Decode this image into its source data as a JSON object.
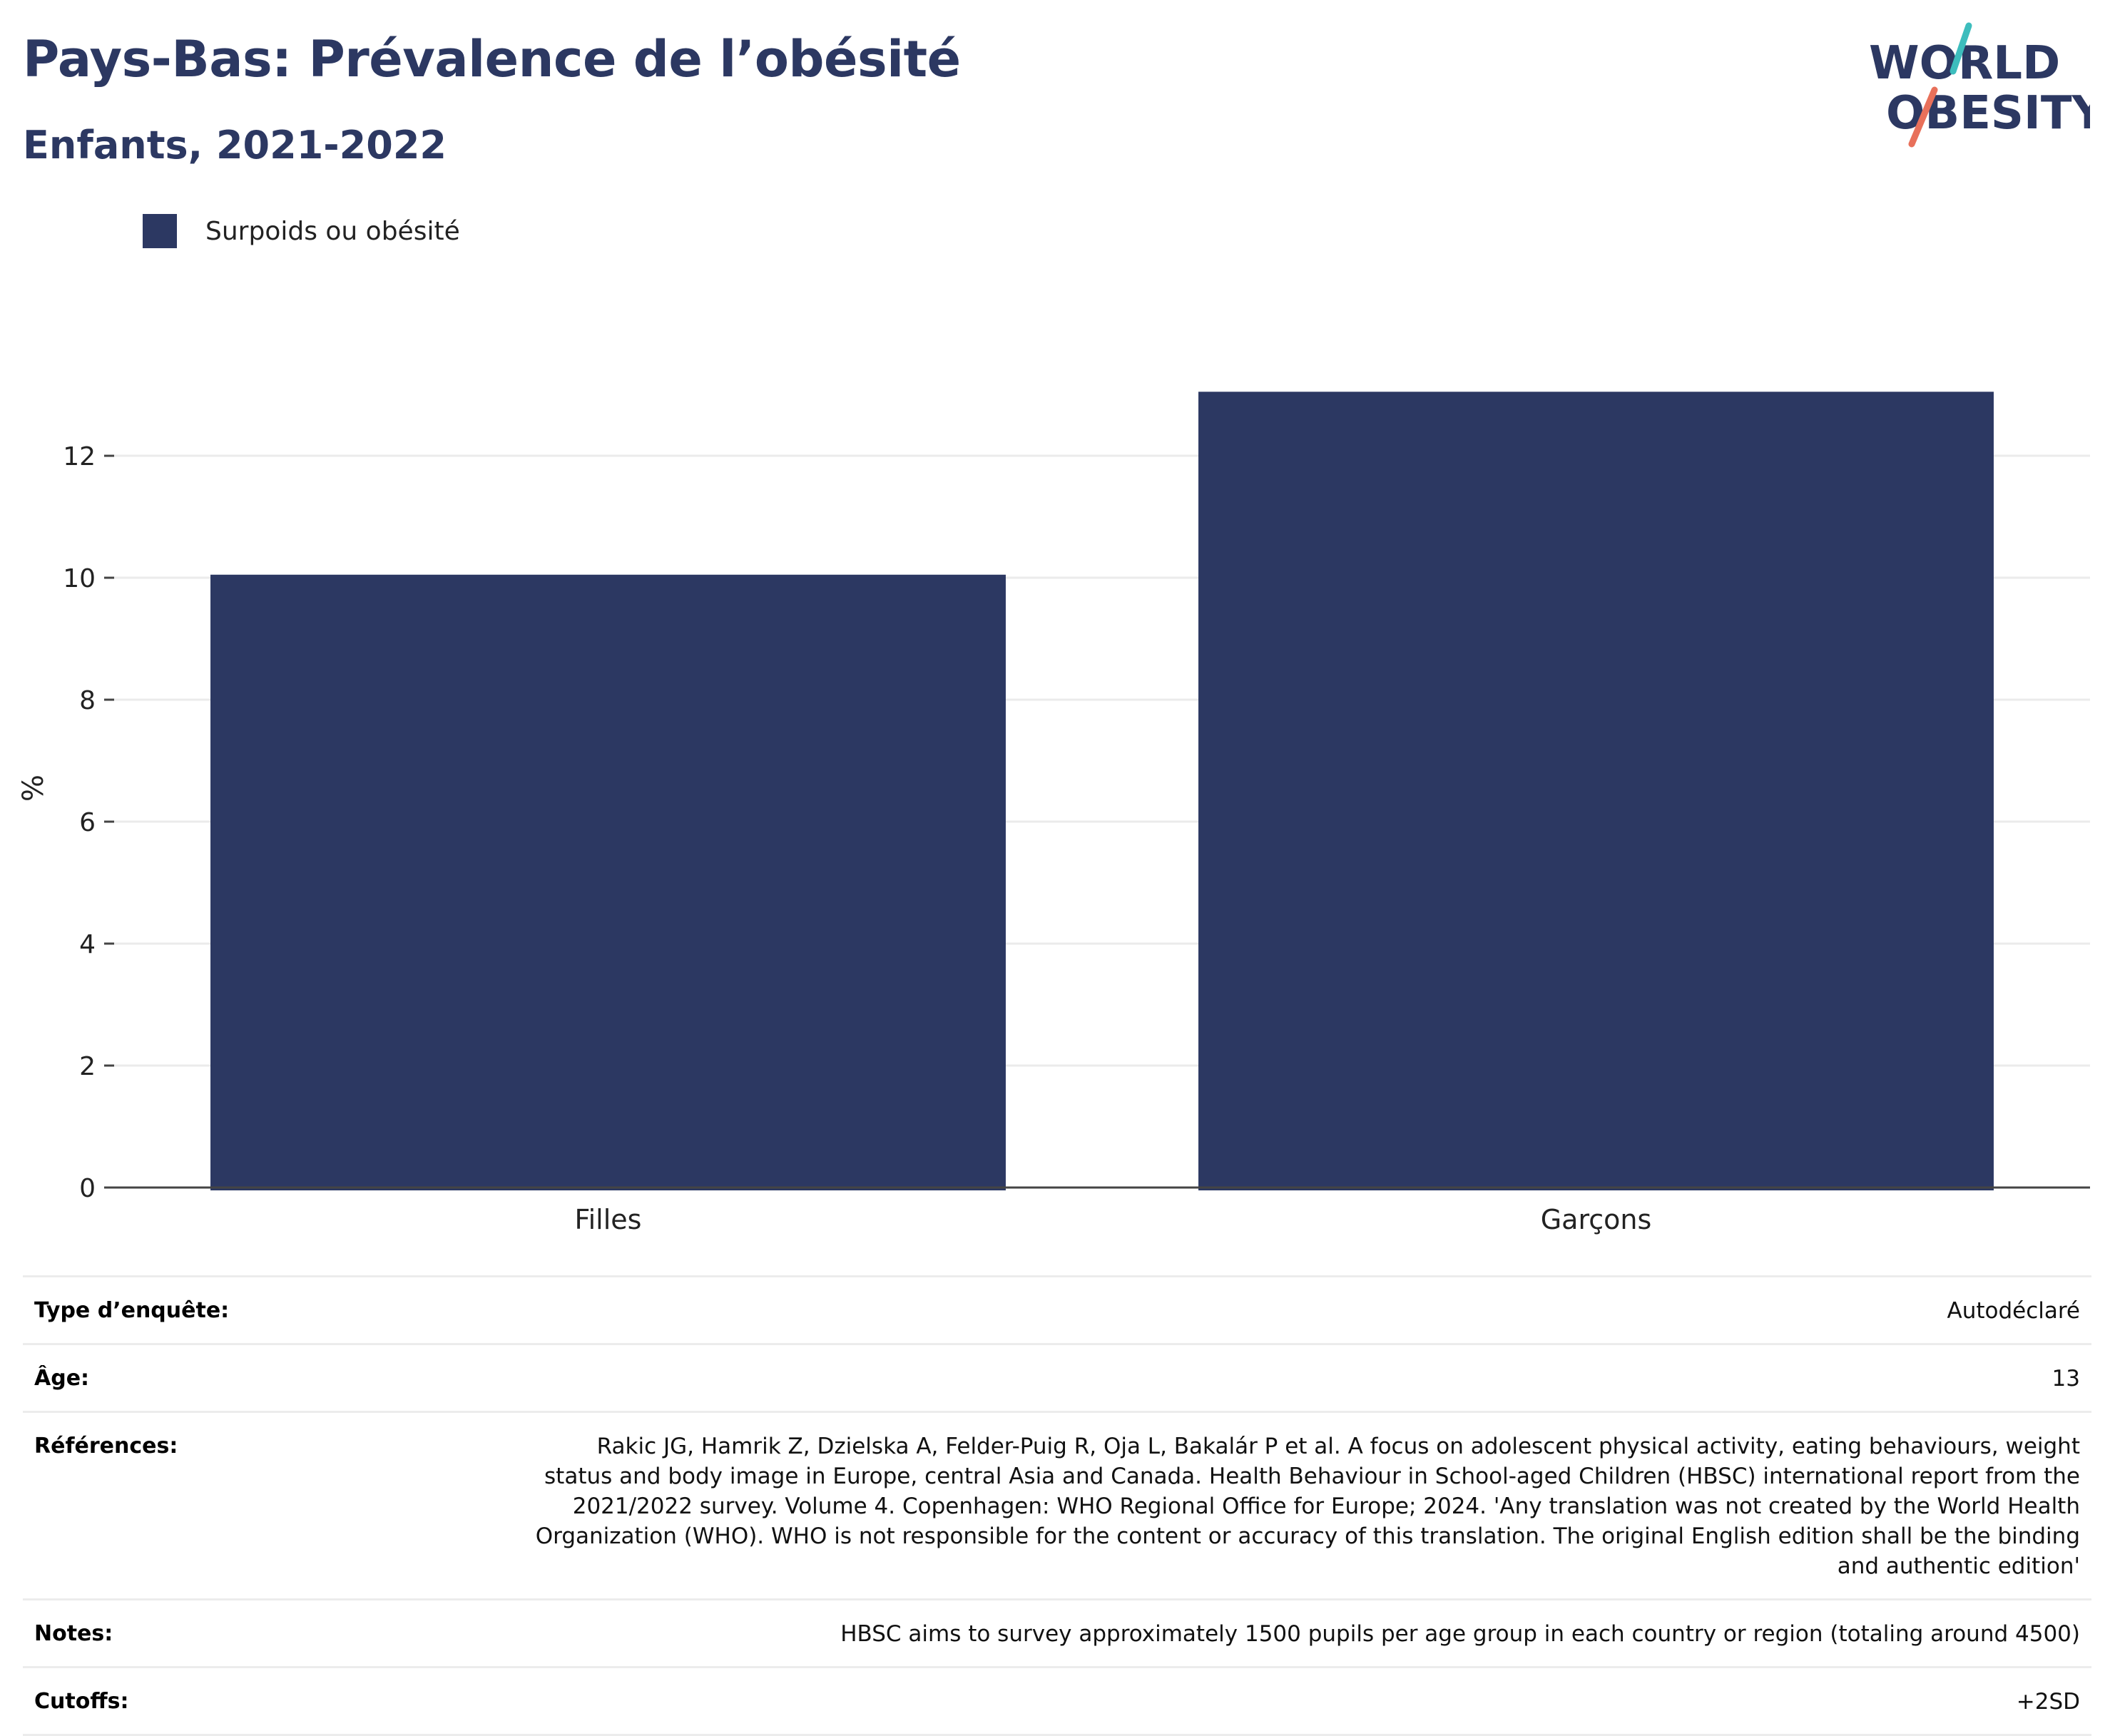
{
  "header": {
    "title": "Pays-Bas: Prévalence de l’obésité",
    "subtitle": "Enfants, 2021-2022"
  },
  "logo": {
    "line1": "WORLD",
    "line2": "OBESITY",
    "colors": {
      "navy": "#2c3862",
      "teal": "#3dbdbd",
      "coral": "#e8705a"
    }
  },
  "legend": {
    "items": [
      {
        "label": "Surpoids ou obésité",
        "color": "#2c3862"
      }
    ]
  },
  "chart_data": {
    "type": "bar",
    "categories": [
      "Filles",
      "Garçons"
    ],
    "series": [
      {
        "name": "Surpoids ou obésité",
        "values": [
          10.05,
          13.05
        ],
        "color": "#2c3862"
      }
    ],
    "ylabel": "%",
    "ylim": [
      0,
      13.1
    ],
    "yticks": [
      0,
      2,
      4,
      6,
      8,
      10,
      12
    ],
    "grid": true
  },
  "info_table": [
    {
      "label": "Type d’enquête:",
      "value": "Autodéclaré"
    },
    {
      "label": "Âge:",
      "value": "13"
    },
    {
      "label": "Références:",
      "value": "Rakic JG, Hamrik Z, Dzielska A, Felder-Puig R, Oja L, Bakalár P et al. A focus on adolescent physical activity, eating behaviours, weight status and body image in Europe, central Asia and Canada. Health Behaviour in School-aged Children (HBSC) international report from the 2021/2022 survey. Volume 4. Copenhagen: WHO Regional Office for Europe; 2024. 'Any translation was not created by the World Health Organization (WHO). WHO is not responsible for the content or accuracy of this translation. The original English edition shall be the binding and authentic edition'"
    },
    {
      "label": "Notes:",
      "value": "HBSC aims to survey approximately 1500 pupils per age group in each country or region (totaling around 4500)"
    },
    {
      "label": "Cutoffs:",
      "value": "+2SD"
    }
  ]
}
